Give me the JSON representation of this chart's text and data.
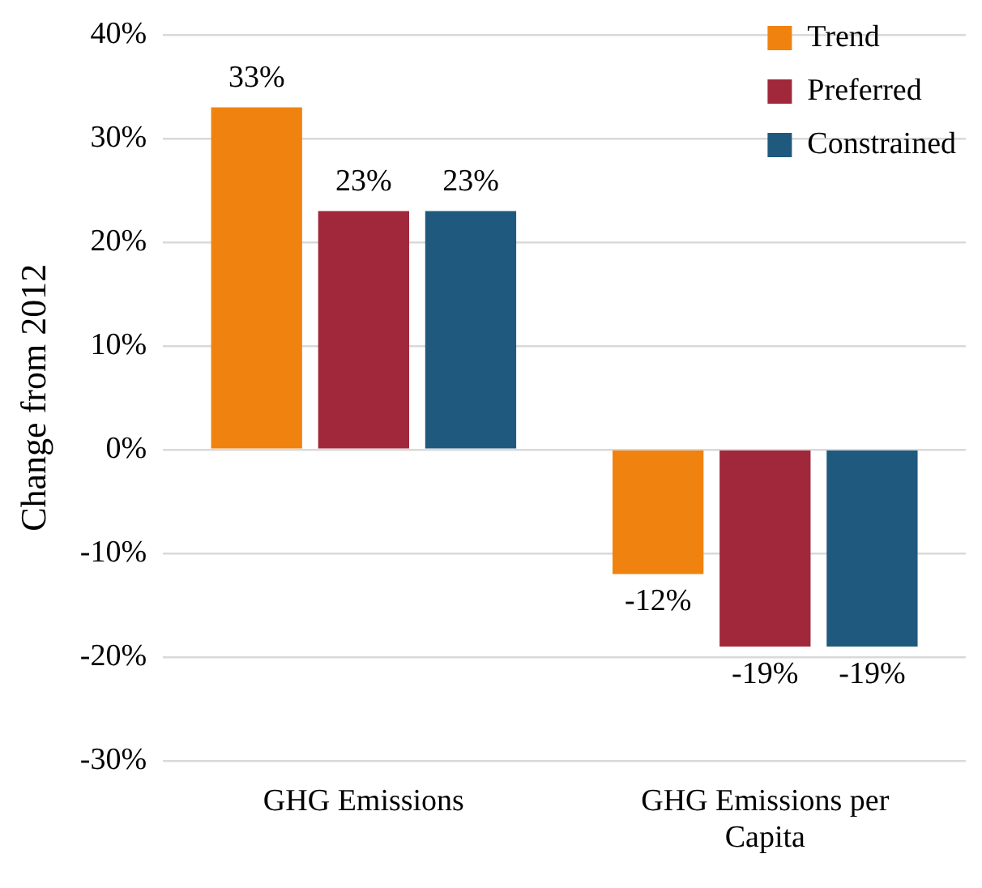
{
  "chart_data": {
    "type": "bar",
    "ylabel": "Change from 2012",
    "categories": [
      "GHG Emissions",
      "GHG Emissions per Capita"
    ],
    "series": [
      {
        "name": "Trend",
        "color": "#f0820f",
        "values": [
          33,
          -12
        ],
        "value_labels": [
          "33%",
          "-12%"
        ]
      },
      {
        "name": "Preferred",
        "color": "#a0283a",
        "values": [
          23,
          -19
        ],
        "value_labels": [
          "23%",
          "-19%"
        ]
      },
      {
        "name": "Constrained",
        "color": "#1f5a7e",
        "values": [
          23,
          -19
        ],
        "value_labels": [
          "23%",
          "-19%"
        ]
      }
    ],
    "ylim": [
      -30,
      40
    ],
    "yticks": [
      {
        "value": -30,
        "label": "-30%"
      },
      {
        "value": -20,
        "label": "-20%"
      },
      {
        "value": -10,
        "label": "-10%"
      },
      {
        "value": 0,
        "label": "0%"
      },
      {
        "value": 10,
        "label": "10%"
      },
      {
        "value": 20,
        "label": "20%"
      },
      {
        "value": 30,
        "label": "30%"
      },
      {
        "value": 40,
        "label": "40%"
      }
    ],
    "grid": "y",
    "legend": "top right"
  }
}
